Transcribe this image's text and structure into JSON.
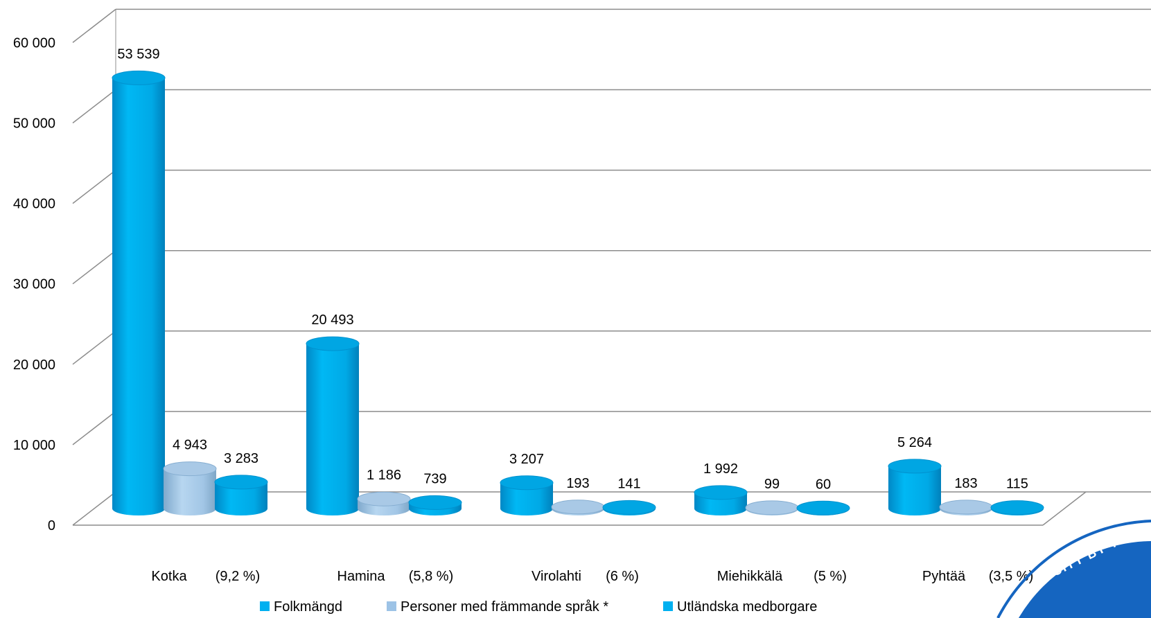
{
  "chart_data": {
    "type": "bar",
    "style": "3d-cylinder",
    "categories": [
      "Kotka",
      "Hamina",
      "Virolahti",
      "Miehikkälä",
      "Pyhtää"
    ],
    "category_notes": [
      "(9,2 %)",
      "(5,8 %)",
      "(6 %)",
      "(5 %)",
      "(3,5 %)"
    ],
    "series": [
      {
        "name": "Folkmängd",
        "values": [
          53539,
          20493,
          3207,
          1992,
          5264
        ],
        "labels": [
          "53 539",
          "20 493",
          "3 207",
          "1 992",
          "5 264"
        ],
        "color": "#00b0f0"
      },
      {
        "name": "Personer med främmande språk *",
        "values": [
          4943,
          1186,
          193,
          99,
          183
        ],
        "labels": [
          "4 943",
          "1 186",
          "193",
          "99",
          "183"
        ],
        "color": "#9dc3e6"
      },
      {
        "name": "Utländska medborgare",
        "values": [
          3283,
          739,
          141,
          60,
          115
        ],
        "labels": [
          "3 283",
          "739",
          "141",
          "60",
          "115"
        ],
        "color": "#00b0f0"
      }
    ],
    "ylim": [
      0,
      60000
    ],
    "yticks": [
      0,
      10000,
      20000,
      30000,
      40000,
      50000,
      60000
    ],
    "ytick_labels": [
      "0",
      "10 000",
      "20 000",
      "30 000",
      "40 000",
      "50 000",
      "60 000"
    ],
    "grid": true,
    "legend_position": "bottom"
  },
  "stamp": {
    "text": "CITY BY TH",
    "color": "#1565c0"
  }
}
